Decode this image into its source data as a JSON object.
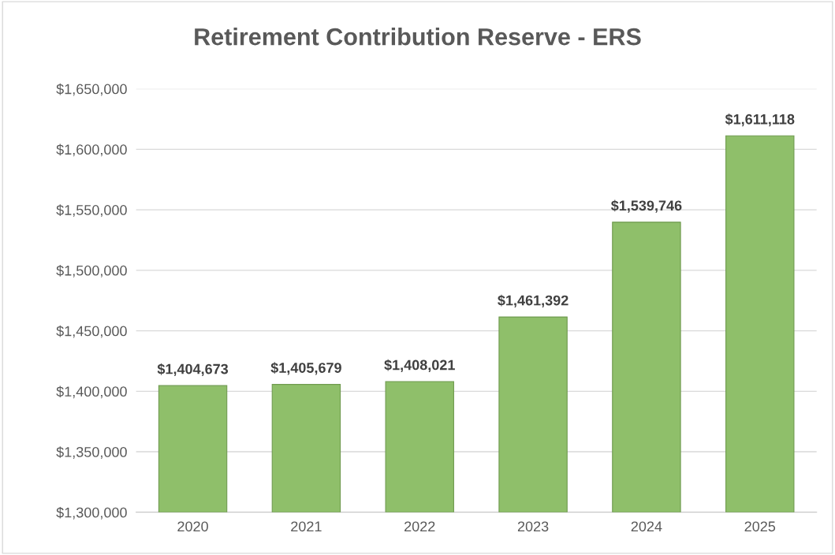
{
  "chart_data": {
    "type": "bar",
    "title": "Retirement Contribution Reserve - ERS",
    "categories": [
      "2020",
      "2021",
      "2022",
      "2023",
      "2024",
      "2025"
    ],
    "values": [
      1404673,
      1405679,
      1408021,
      1461392,
      1539746,
      1611118
    ],
    "value_labels": [
      "$1,404,673",
      "$1,405,679",
      "$1,408,021",
      "$1,461,392",
      "$1,539,746",
      "$1,611,118"
    ],
    "color": "#8fbf6a",
    "ylim": [
      1300000,
      1650000
    ],
    "yticks": [
      {
        "value": 1300000,
        "label": "$1,300,000"
      },
      {
        "value": 1350000,
        "label": "$1,350,000"
      },
      {
        "value": 1400000,
        "label": "$1,400,000"
      },
      {
        "value": 1450000,
        "label": "$1,450,000"
      },
      {
        "value": 1500000,
        "label": "$1,500,000"
      },
      {
        "value": 1550000,
        "label": "$1,550,000"
      },
      {
        "value": 1600000,
        "label": "$1,600,000"
      },
      {
        "value": 1650000,
        "label": "$1,650,000"
      }
    ],
    "grid": "y"
  }
}
